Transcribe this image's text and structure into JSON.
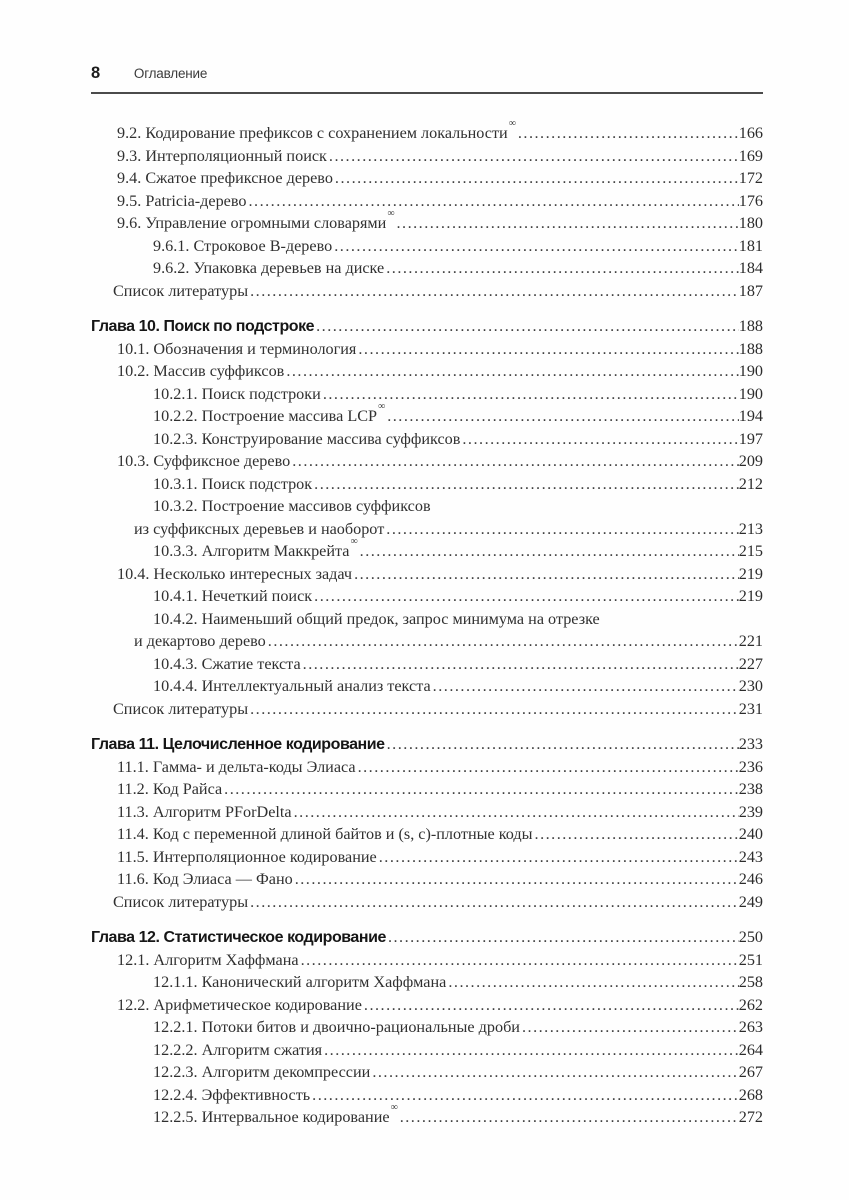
{
  "header": {
    "page_number": "8",
    "title": "Оглавление"
  },
  "marks": {
    "advanced": "∞"
  },
  "colors": {
    "text": "#303030",
    "heading": "#161616",
    "rule": "#4b4b4b",
    "background": "#fefefe"
  },
  "toc": {
    "entries": [
      {
        "level": "l1",
        "text": "9.2. Кодирование префиксов с сохранением локальности",
        "sup": "∞",
        "page": "166"
      },
      {
        "level": "l1",
        "text": "9.3. Интерполяционный поиск",
        "page": "169"
      },
      {
        "level": "l1",
        "text": "9.4. Сжатое префиксное дерево",
        "page": "172"
      },
      {
        "level": "l1",
        "text": "9.5. Patricia-дерево",
        "page": "176"
      },
      {
        "level": "l1",
        "text": "9.6. Управление огромными словарями",
        "sup": "∞",
        "page": "180"
      },
      {
        "level": "l2",
        "text": "9.6.1. Строковое B-дерево",
        "page": "181"
      },
      {
        "level": "l2",
        "text": "9.6.2. Упаковка деревьев на диске",
        "page": "184"
      },
      {
        "level": "bib",
        "text": "Список литературы",
        "page": "187"
      },
      {
        "level": "chapter",
        "text": "Глава 10. Поиск по подстроке",
        "page": "188"
      },
      {
        "level": "l1",
        "text": "10.1. Обозначения и терминология",
        "page": "188"
      },
      {
        "level": "l1",
        "text": "10.2. Массив суффиксов",
        "page": "190"
      },
      {
        "level": "l2",
        "text": "10.2.1. Поиск подстроки",
        "page": "190"
      },
      {
        "level": "l2",
        "text": "10.2.2. Построение массива LCP",
        "sup": "∞",
        "page": "194"
      },
      {
        "level": "l2",
        "text": "10.2.3. Конструирование массива суффиксов",
        "page": "197"
      },
      {
        "level": "l1",
        "text": "10.3. Суффиксное дерево",
        "page": "209"
      },
      {
        "level": "l2",
        "text": "10.3.1. Поиск подстрок",
        "page": "212"
      },
      {
        "level": "l2",
        "text": "10.3.2. Построение массивов суффиксов",
        "text2": "из суффиксных деревьев и наоборот",
        "page": "213"
      },
      {
        "level": "l2",
        "text": "10.3.3. Алгоритм Маккрейта",
        "sup": "∞",
        "page": "215"
      },
      {
        "level": "l1",
        "text": "10.4. Несколько интересных задач",
        "page": "219"
      },
      {
        "level": "l2",
        "text": "10.4.1. Нечеткий поиск",
        "page": "219"
      },
      {
        "level": "l2",
        "text": "10.4.2. Наименьший общий предок, запрос минимума на отрезке",
        "text2": "и декартово дерево",
        "page": "221"
      },
      {
        "level": "l2",
        "text": "10.4.3. Сжатие текста",
        "page": "227"
      },
      {
        "level": "l2",
        "text": "10.4.4. Интеллектуальный анализ текста",
        "page": "230"
      },
      {
        "level": "bib",
        "text": "Список литературы",
        "page": "231"
      },
      {
        "level": "chapter",
        "text": "Глава 11. Целочисленное кодирование",
        "page": "233"
      },
      {
        "level": "l1",
        "text": "11.1. Гамма- и дельта-коды Элиаса",
        "page": "236"
      },
      {
        "level": "l1",
        "text": "11.2. Код Райса",
        "page": "238"
      },
      {
        "level": "l1",
        "text": "11.3. Алгоритм PForDelta",
        "page": "239"
      },
      {
        "level": "l1",
        "text": "11.4. Код с переменной длиной байтов и (s, c)-плотные коды",
        "page": "240"
      },
      {
        "level": "l1",
        "text": "11.5. Интерполяционное кодирование",
        "page": "243"
      },
      {
        "level": "l1",
        "text": "11.6. Код Элиаса — Фано",
        "page": "246"
      },
      {
        "level": "bib",
        "text": "Список литературы",
        "page": "249"
      },
      {
        "level": "chapter",
        "text": "Глава 12. Статистическое кодирование",
        "page": "250"
      },
      {
        "level": "l1",
        "text": "12.1. Алгоритм Хаффмана",
        "page": "251"
      },
      {
        "level": "l2",
        "text": "12.1.1. Канонический алгоритм Хаффмана",
        "page": "258"
      },
      {
        "level": "l1",
        "text": "12.2. Арифметическое кодирование",
        "page": "262"
      },
      {
        "level": "l2",
        "text": "12.2.1. Потоки битов и двоично-рациональные дроби",
        "page": "263"
      },
      {
        "level": "l2",
        "text": "12.2.2. Алгоритм сжатия",
        "page": "264"
      },
      {
        "level": "l2",
        "text": "12.2.3. Алгоритм декомпрессии",
        "page": "267"
      },
      {
        "level": "l2",
        "text": "12.2.4. Эффективность",
        "page": "268"
      },
      {
        "level": "l2",
        "text": "12.2.5. Интервальное кодирование",
        "sup": "∞",
        "page": "272"
      }
    ]
  }
}
